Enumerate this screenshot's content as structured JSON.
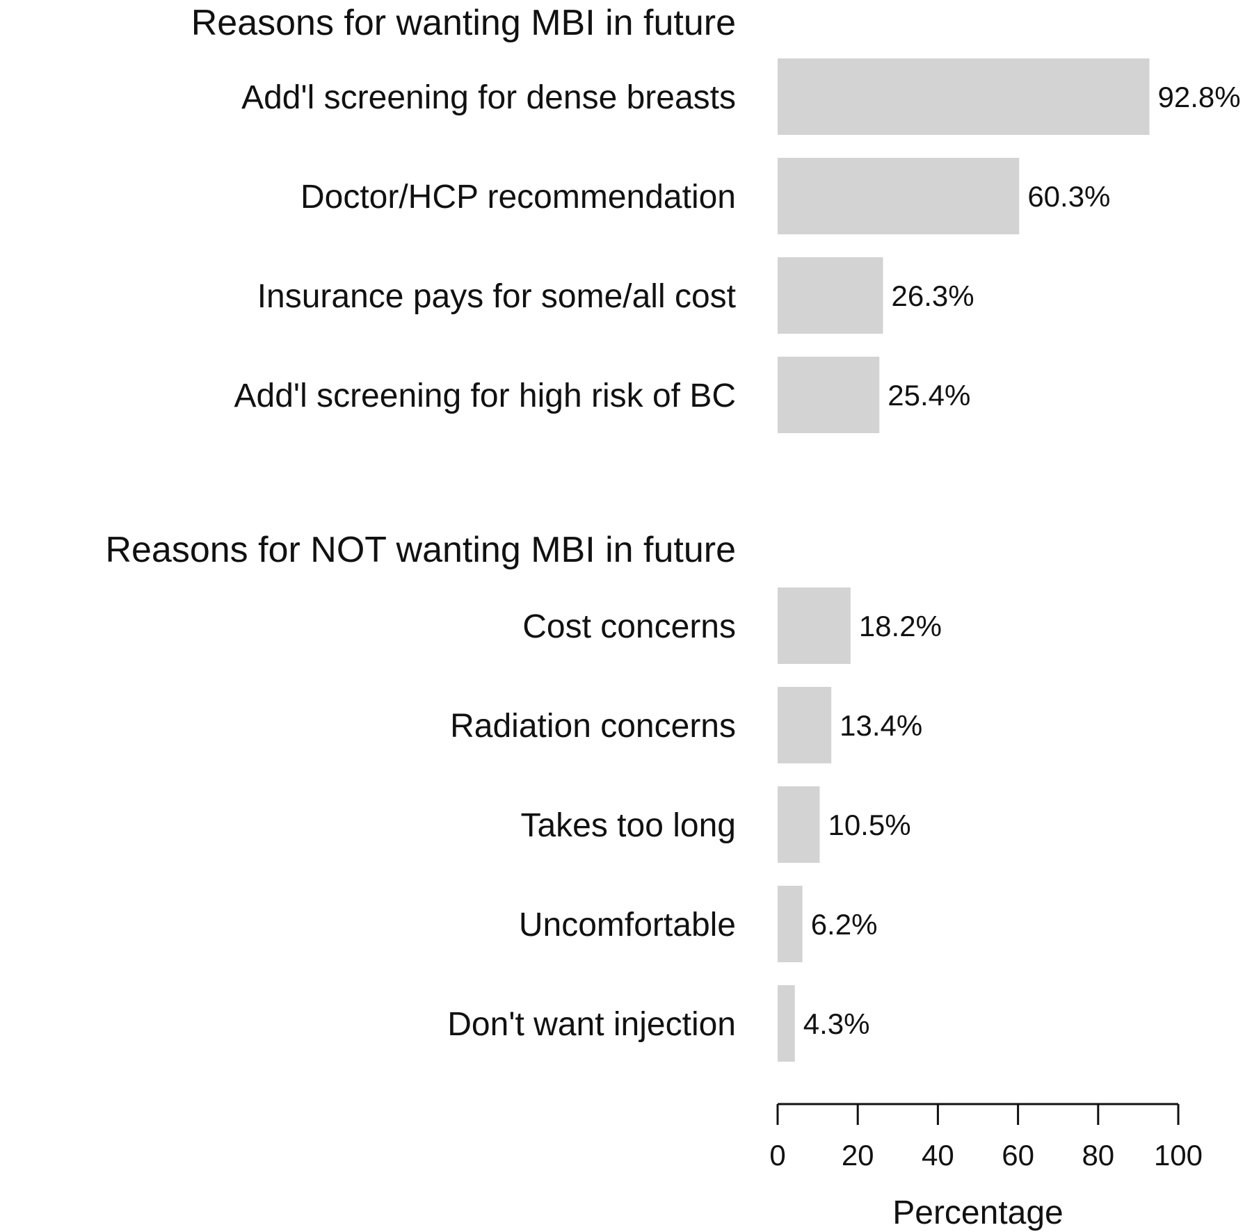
{
  "chart_data": {
    "type": "bar",
    "orientation": "horizontal",
    "bar_color": "#d3d3d3",
    "groups": [
      {
        "title": "Reasons for wanting MBI in future",
        "categories": [
          "Add'l screening for dense breasts",
          "Doctor/HCP recommendation",
          "Insurance pays for some/all cost",
          "Add'l screening for high risk of BC"
        ],
        "values": [
          92.8,
          60.3,
          26.3,
          25.4
        ],
        "value_labels": [
          "92.8%",
          "60.3%",
          "26.3%",
          "25.4%"
        ]
      },
      {
        "title": "Reasons for NOT wanting MBI in future",
        "categories": [
          "Cost concerns",
          "Radiation concerns",
          "Takes too long",
          "Uncomfortable",
          "Don't want injection"
        ],
        "values": [
          18.2,
          13.4,
          10.5,
          6.2,
          4.3
        ],
        "value_labels": [
          "18.2%",
          "13.4%",
          "10.5%",
          "6.2%",
          "4.3%"
        ]
      }
    ],
    "xlabel": "Percentage",
    "xlim": [
      0,
      100
    ],
    "xticks": [
      0,
      20,
      40,
      60,
      80,
      100
    ],
    "xtick_labels": [
      "0",
      "20",
      "40",
      "60",
      "80",
      "100"
    ],
    "grid": false,
    "legend": "none"
  }
}
